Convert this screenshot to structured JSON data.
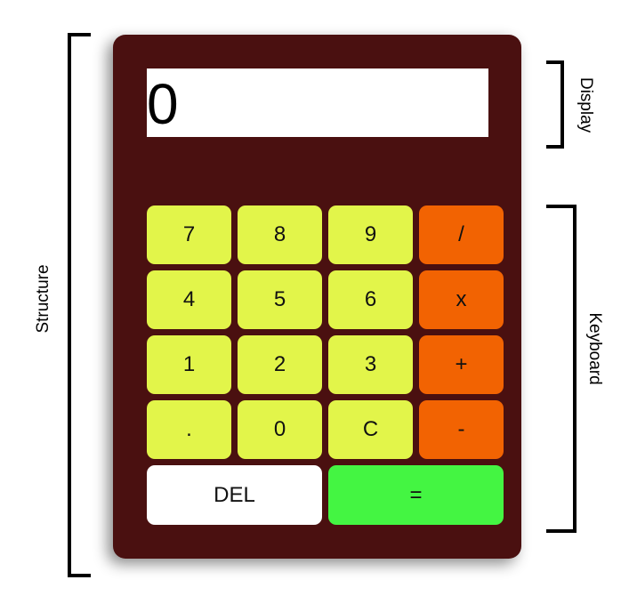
{
  "labels": {
    "structure": "Structure",
    "display": "Display",
    "keyboard": "Keyboard"
  },
  "calculator": {
    "display_value": "0",
    "keys": [
      {
        "label": "7",
        "type": "num"
      },
      {
        "label": "8",
        "type": "num"
      },
      {
        "label": "9",
        "type": "num"
      },
      {
        "label": "/",
        "type": "op"
      },
      {
        "label": "4",
        "type": "num"
      },
      {
        "label": "5",
        "type": "num"
      },
      {
        "label": "6",
        "type": "num"
      },
      {
        "label": "x",
        "type": "op"
      },
      {
        "label": "1",
        "type": "num"
      },
      {
        "label": "2",
        "type": "num"
      },
      {
        "label": "3",
        "type": "num"
      },
      {
        "label": "+",
        "type": "op"
      },
      {
        "label": ".",
        "type": "num"
      },
      {
        "label": "0",
        "type": "num"
      },
      {
        "label": "C",
        "type": "num"
      },
      {
        "label": "-",
        "type": "op"
      },
      {
        "label": "DEL",
        "type": "del"
      },
      {
        "label": "=",
        "type": "eq"
      }
    ]
  },
  "colors": {
    "body": "#4a1010",
    "number_key": "#e2f54a",
    "operator_key": "#f26302",
    "delete_key": "#ffffff",
    "equals_key": "#44f542",
    "display_bg": "#ffffff"
  }
}
